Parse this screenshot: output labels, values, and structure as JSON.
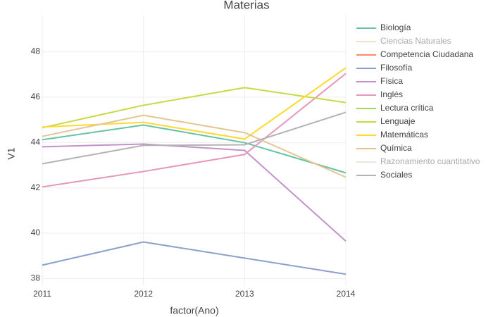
{
  "chart_data": {
    "type": "line",
    "title": "Materias",
    "xlabel": "factor(Ano)",
    "ylabel": "V1",
    "categories": [
      "2011",
      "2012",
      "2013",
      "2014"
    ],
    "ylim": [
      37.7,
      49.6
    ],
    "yticks": [
      38,
      40,
      42,
      44,
      46,
      48
    ],
    "grid": true,
    "legend": "right",
    "series": [
      {
        "name": "Biología",
        "color": "#66c2a5",
        "values": [
          44.12,
          44.77,
          43.99,
          42.66
        ]
      },
      {
        "name": "Ciencias Naturales",
        "color": "#e5c494",
        "visible": "legendonly",
        "values": [
          null,
          null,
          null,
          null
        ]
      },
      {
        "name": "Competencia Ciudadana",
        "color": "#fc8d62",
        "values": [
          null,
          null,
          null,
          null
        ]
      },
      {
        "name": "Filosofía",
        "color": "#8da0cb",
        "values": [
          38.59,
          39.61,
          38.9,
          38.19
        ]
      },
      {
        "name": "Física",
        "color": "#c392c9",
        "values": [
          43.81,
          43.93,
          43.65,
          39.65
        ]
      },
      {
        "name": "Inglés",
        "color": "#e597b9",
        "values": [
          42.04,
          42.72,
          43.47,
          47.04
        ]
      },
      {
        "name": "Lectura crítica",
        "color": "#a6d854",
        "values": [
          null,
          null,
          null,
          null
        ]
      },
      {
        "name": "Lenguaje",
        "color": "#c9d945",
        "values": [
          44.65,
          45.64,
          46.42,
          45.76
        ]
      },
      {
        "name": "Matemáticas",
        "color": "#ffd92f",
        "values": [
          44.68,
          44.89,
          44.15,
          47.29
        ]
      },
      {
        "name": "Química",
        "color": "#e5c494",
        "values": [
          44.27,
          45.2,
          44.43,
          42.47
        ]
      },
      {
        "name": "Razonamiento cuantitativo",
        "color": "#d9cfb8",
        "visible": "legendonly",
        "values": [
          null,
          null,
          null,
          null
        ]
      },
      {
        "name": "Sociales",
        "color": "#b3b3b3",
        "values": [
          43.06,
          43.87,
          43.9,
          45.33
        ]
      }
    ]
  }
}
